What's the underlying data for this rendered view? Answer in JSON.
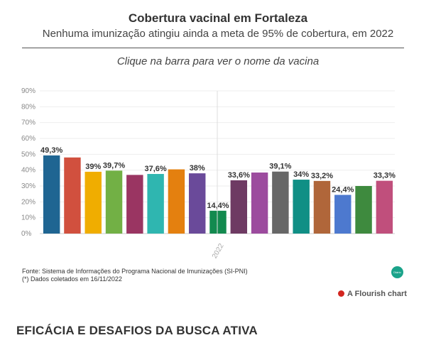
{
  "header": {
    "title": "Cobertura vacinal em Fortaleza",
    "subtitle": "Nenhuma imunização atingiu ainda a meta de 95% de cobertura, em 2022",
    "instruction": "Clique na barra para ver o nome da vacina"
  },
  "chart_data": {
    "type": "bar",
    "categories": [
      "2022"
    ],
    "ylim": [
      0,
      90
    ],
    "yticks": [
      0,
      10,
      20,
      30,
      40,
      50,
      60,
      70,
      80,
      90
    ],
    "ytick_labels": [
      "0%",
      "10%",
      "20%",
      "30%",
      "40%",
      "50%",
      "60%",
      "70%",
      "80%",
      "90%"
    ],
    "grid": true,
    "legend": "none",
    "bars": [
      {
        "value": 49.3,
        "label": "49,3%",
        "color": "#1f6592"
      },
      {
        "value": 48.0,
        "label": "",
        "color": "#d1503e"
      },
      {
        "value": 39.0,
        "label": "39%",
        "color": "#f0ad00"
      },
      {
        "value": 39.7,
        "label": "39,7%",
        "color": "#72b045"
      },
      {
        "value": 37.0,
        "label": "",
        "color": "#9a3562"
      },
      {
        "value": 37.6,
        "label": "37,6%",
        "color": "#2fb6b0"
      },
      {
        "value": 40.5,
        "label": "",
        "color": "#e4800f"
      },
      {
        "value": 38.0,
        "label": "38%",
        "color": "#6a4a9a"
      },
      {
        "value": 14.4,
        "label": "14,4%",
        "color": "#138a4f"
      },
      {
        "value": 33.6,
        "label": "33,6%",
        "color": "#6e3a63"
      },
      {
        "value": 38.5,
        "label": "",
        "color": "#9c4b9e"
      },
      {
        "value": 39.1,
        "label": "39,1%",
        "color": "#676767"
      },
      {
        "value": 34.0,
        "label": "34%",
        "color": "#108f85"
      },
      {
        "value": 33.2,
        "label": "33,2%",
        "color": "#b0663a"
      },
      {
        "value": 24.4,
        "label": "24,4%",
        "color": "#4d79cf"
      },
      {
        "value": 30.0,
        "label": "",
        "color": "#3e8a3e"
      },
      {
        "value": 33.3,
        "label": "33,3%",
        "color": "#c04f7c"
      }
    ]
  },
  "footer": {
    "source": "Fonte: Sistema de Informações do Programa Nacional de Imunizações (SI-PNI)",
    "note": "(*) Dados coletados em 16/11/2022",
    "badge": "Diário",
    "flourish": "A Flourish chart"
  },
  "article": {
    "section_title": "EFICÁCIA E DESAFIOS DA BUSCA ATIVA"
  }
}
